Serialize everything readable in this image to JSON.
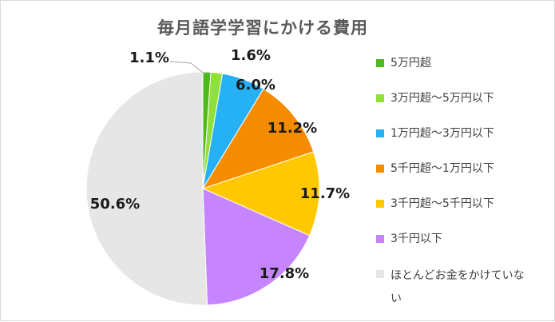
{
  "chart_data": {
    "type": "pie",
    "title": "毎月語学学習にかける費用",
    "start_angle_deg": 0,
    "direction": "clockwise",
    "slices": [
      {
        "label": "5万円超",
        "value": 1.1,
        "value_label": "1.1%",
        "color": "#4fb81a"
      },
      {
        "label": "3万円超～5万円以下",
        "value": 1.6,
        "value_label": "1.6%",
        "color": "#8fe03a"
      },
      {
        "label": "1万円超～3万円以下",
        "value": 6.0,
        "value_label": "6.0%",
        "color": "#26b1f5"
      },
      {
        "label": "5千円超～1万円以下",
        "value": 11.2,
        "value_label": "11.2%",
        "color": "#f58c00"
      },
      {
        "label": "3千円超～5千円以下",
        "value": 11.7,
        "value_label": "11.7%",
        "color": "#ffc800"
      },
      {
        "label": "3千円以下",
        "value": 17.8,
        "value_label": "17.8%",
        "color": "#c685ff"
      },
      {
        "label": "ほとんどお金をかけていない",
        "value": 50.6,
        "value_label": "50.6%",
        "color": "#e6e6e6"
      }
    ],
    "legend_position": "right"
  }
}
